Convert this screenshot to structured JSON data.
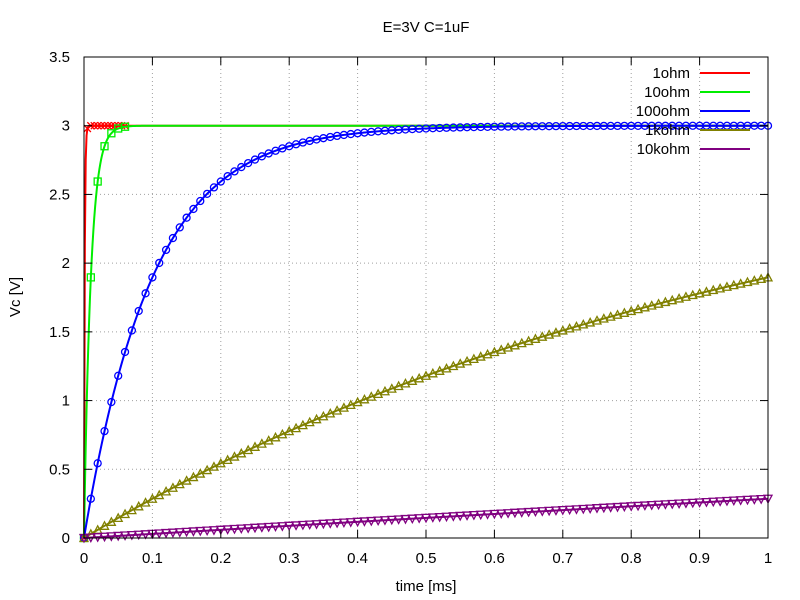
{
  "chart_data": {
    "type": "line",
    "title": "E=3V C=1uF",
    "xlabel": "time [ms]",
    "ylabel": "Vc [V]",
    "xlim": [
      0,
      1
    ],
    "ylim": [
      0,
      3.5
    ],
    "x_ticks": [
      "0",
      "0.1",
      "0.2",
      "0.3",
      "0.4",
      "0.5",
      "0.6",
      "0.7",
      "0.8",
      "0.9",
      "1"
    ],
    "y_ticks": [
      "0",
      "0.5",
      "1",
      "1.5",
      "2",
      "2.5",
      "3",
      "3.5"
    ],
    "grid": true,
    "legend_position": "top-right",
    "E": 3,
    "series": [
      {
        "name": "1ohm",
        "color": "#ff0000",
        "marker": "x",
        "tau_ms": 0.001,
        "marker_step_ms": 0.005,
        "marker_end_ms": 0.06
      },
      {
        "name": "10ohm",
        "color": "#00ee00",
        "marker": "square",
        "tau_ms": 0.01,
        "marker_step_ms": 0.01,
        "marker_end_ms": 0.06
      },
      {
        "name": "100ohm",
        "color": "#0000ff",
        "marker": "circle",
        "tau_ms": 0.1,
        "marker_step_ms": 0.01,
        "marker_end_ms": 1.0
      },
      {
        "name": "1kohm",
        "color": "#808000",
        "marker": "triangle-up",
        "tau_ms": 1.0,
        "marker_step_ms": 0.01,
        "marker_end_ms": 1.0
      },
      {
        "name": "10kohm",
        "color": "#800080",
        "marker": "triangle-down",
        "tau_ms": 10.0,
        "marker_step_ms": 0.01,
        "marker_end_ms": 1.0
      }
    ]
  }
}
